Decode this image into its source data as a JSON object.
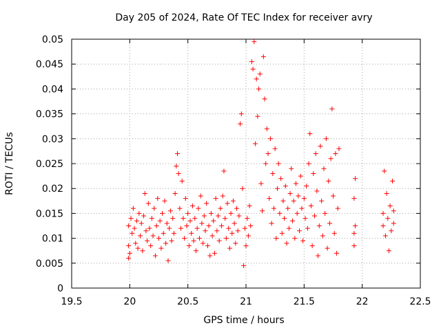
{
  "chart_data": {
    "type": "scatter",
    "title": "Day 205 of 2024, Rate Of TEC Index for receiver avry",
    "xlabel": "GPS time / hours",
    "ylabel": "ROTI / TECUs",
    "xlim": [
      19.5,
      22.5
    ],
    "ylim": [
      0,
      0.05
    ],
    "xticks": [
      19.5,
      20,
      20.5,
      21,
      21.5,
      22,
      22.5
    ],
    "xtick_labels": [
      "19.5",
      "20",
      "20.5",
      "21",
      "21.5",
      "22",
      "22.5"
    ],
    "yticks": [
      0,
      0.005,
      0.01,
      0.015,
      0.02,
      0.025,
      0.03,
      0.035,
      0.04,
      0.045,
      0.05
    ],
    "ytick_labels": [
      "0",
      "0.005",
      "0.01",
      "0.015",
      "0.02",
      "0.025",
      "0.03",
      "0.035",
      "0.04",
      "0.045",
      "0.05"
    ],
    "grid": true,
    "legend": "none",
    "marker": "plus",
    "series_color": "#ff0000",
    "series": [
      {
        "name": "ROTI",
        "points": [
          [
            19.99,
            0.006
          ],
          [
            19.99,
            0.0085
          ],
          [
            19.99,
            0.0125
          ],
          [
            20.0,
            0.007
          ],
          [
            20.01,
            0.014
          ],
          [
            20.02,
            0.011
          ],
          [
            20.03,
            0.016
          ],
          [
            20.04,
            0.012
          ],
          [
            20.05,
            0.009
          ],
          [
            20.06,
            0.0135
          ],
          [
            20.07,
            0.008
          ],
          [
            20.08,
            0.015
          ],
          [
            20.09,
            0.0105
          ],
          [
            20.1,
            0.013
          ],
          [
            20.11,
            0.0075
          ],
          [
            20.12,
            0.0145
          ],
          [
            20.13,
            0.019
          ],
          [
            20.14,
            0.0115
          ],
          [
            20.15,
            0.0095
          ],
          [
            20.16,
            0.017
          ],
          [
            20.17,
            0.012
          ],
          [
            20.18,
            0.0085
          ],
          [
            20.19,
            0.014
          ],
          [
            20.2,
            0.0105
          ],
          [
            20.21,
            0.016
          ],
          [
            20.22,
            0.0065
          ],
          [
            20.23,
            0.0125
          ],
          [
            20.24,
            0.018
          ],
          [
            20.25,
            0.01
          ],
          [
            20.26,
            0.0135
          ],
          [
            20.27,
            0.008
          ],
          [
            20.28,
            0.015
          ],
          [
            20.29,
            0.011
          ],
          [
            20.3,
            0.0175
          ],
          [
            20.31,
            0.009
          ],
          [
            20.32,
            0.013
          ],
          [
            20.33,
            0.0055
          ],
          [
            20.34,
            0.012
          ],
          [
            20.35,
            0.0155
          ],
          [
            20.36,
            0.0095
          ],
          [
            20.37,
            0.014
          ],
          [
            20.38,
            0.011
          ],
          [
            20.39,
            0.019
          ],
          [
            20.4,
            0.0245
          ],
          [
            20.41,
            0.027
          ],
          [
            20.42,
            0.023
          ],
          [
            20.43,
            0.016
          ],
          [
            20.44,
            0.012
          ],
          [
            20.45,
            0.0215
          ],
          [
            20.46,
            0.014
          ],
          [
            20.47,
            0.01
          ],
          [
            20.48,
            0.018
          ],
          [
            20.49,
            0.0125
          ],
          [
            20.5,
            0.015
          ],
          [
            20.51,
            0.0085
          ],
          [
            20.52,
            0.0135
          ],
          [
            20.53,
            0.011
          ],
          [
            20.54,
            0.0165
          ],
          [
            20.55,
            0.0095
          ],
          [
            20.56,
            0.014
          ],
          [
            20.57,
            0.0075
          ],
          [
            20.58,
            0.012
          ],
          [
            20.59,
            0.016
          ],
          [
            20.6,
            0.01
          ],
          [
            20.61,
            0.0185
          ],
          [
            20.62,
            0.013
          ],
          [
            20.63,
            0.009
          ],
          [
            20.64,
            0.0145
          ],
          [
            20.65,
            0.0115
          ],
          [
            20.66,
            0.017
          ],
          [
            20.67,
            0.0085
          ],
          [
            20.68,
            0.0125
          ],
          [
            20.69,
            0.0065
          ],
          [
            20.7,
            0.015
          ],
          [
            20.71,
            0.0105
          ],
          [
            20.72,
            0.0135
          ],
          [
            20.73,
            0.007
          ],
          [
            20.74,
            0.018
          ],
          [
            20.75,
            0.0115
          ],
          [
            20.76,
            0.0145
          ],
          [
            20.77,
            0.0095
          ],
          [
            20.78,
            0.016
          ],
          [
            20.79,
            0.0125
          ],
          [
            20.8,
            0.0185
          ],
          [
            20.81,
            0.0235
          ],
          [
            20.82,
            0.014
          ],
          [
            20.83,
            0.01
          ],
          [
            20.84,
            0.017
          ],
          [
            20.85,
            0.012
          ],
          [
            20.86,
            0.008
          ],
          [
            20.87,
            0.015
          ],
          [
            20.88,
            0.011
          ],
          [
            20.89,
            0.0175
          ],
          [
            20.9,
            0.013
          ],
          [
            20.91,
            0.009
          ],
          [
            20.92,
            0.016
          ],
          [
            20.93,
            0.0115
          ],
          [
            20.94,
            0.0145
          ],
          [
            20.95,
            0.033
          ],
          [
            20.96,
            0.035
          ],
          [
            20.97,
            0.02
          ],
          [
            20.98,
            0.0045
          ],
          [
            20.99,
            0.012
          ],
          [
            21.0,
            0.0085
          ],
          [
            21.01,
            0.014
          ],
          [
            21.02,
            0.0105
          ],
          [
            21.03,
            0.0165
          ],
          [
            21.04,
            0.0125
          ],
          [
            21.05,
            0.0455
          ],
          [
            21.06,
            0.044
          ],
          [
            21.07,
            0.0495
          ],
          [
            21.08,
            0.029
          ],
          [
            21.09,
            0.042
          ],
          [
            21.1,
            0.0345
          ],
          [
            21.11,
            0.04
          ],
          [
            21.12,
            0.043
          ],
          [
            21.13,
            0.021
          ],
          [
            21.14,
            0.0155
          ],
          [
            21.15,
            0.0465
          ],
          [
            21.16,
            0.038
          ],
          [
            21.17,
            0.025
          ],
          [
            21.18,
            0.032
          ],
          [
            21.19,
            0.027
          ],
          [
            21.2,
            0.018
          ],
          [
            21.21,
            0.03
          ],
          [
            21.22,
            0.013
          ],
          [
            21.23,
            0.023
          ],
          [
            21.24,
            0.016
          ],
          [
            21.25,
            0.028
          ],
          [
            21.26,
            0.01
          ],
          [
            21.27,
            0.02
          ],
          [
            21.28,
            0.025
          ],
          [
            21.29,
            0.015
          ],
          [
            21.3,
            0.022
          ],
          [
            21.31,
            0.011
          ],
          [
            21.32,
            0.0175
          ],
          [
            21.33,
            0.014
          ],
          [
            21.34,
            0.0205
          ],
          [
            21.35,
            0.009
          ],
          [
            21.36,
            0.016
          ],
          [
            21.37,
            0.012
          ],
          [
            21.38,
            0.019
          ],
          [
            21.39,
            0.024
          ],
          [
            21.4,
            0.0135
          ],
          [
            21.41,
            0.0175
          ],
          [
            21.42,
            0.01
          ],
          [
            21.43,
            0.021
          ],
          [
            21.44,
            0.015
          ],
          [
            21.45,
            0.0185
          ],
          [
            21.46,
            0.0115
          ],
          [
            21.47,
            0.0225
          ],
          [
            21.48,
            0.016
          ],
          [
            21.49,
            0.0095
          ],
          [
            21.5,
            0.018
          ],
          [
            21.51,
            0.014
          ],
          [
            21.52,
            0.0205
          ],
          [
            21.53,
            0.012
          ],
          [
            21.54,
            0.025
          ],
          [
            21.55,
            0.031
          ],
          [
            21.56,
            0.0165
          ],
          [
            21.57,
            0.0085
          ],
          [
            21.58,
            0.023
          ],
          [
            21.59,
            0.0145
          ],
          [
            21.6,
            0.027
          ],
          [
            21.61,
            0.0195
          ],
          [
            21.62,
            0.0065
          ],
          [
            21.63,
            0.0125
          ],
          [
            21.64,
            0.0285
          ],
          [
            21.65,
            0.0175
          ],
          [
            21.66,
            0.0105
          ],
          [
            21.67,
            0.024
          ],
          [
            21.68,
            0.015
          ],
          [
            21.69,
            0.03
          ],
          [
            21.7,
            0.008
          ],
          [
            21.71,
            0.0215
          ],
          [
            21.72,
            0.013
          ],
          [
            21.73,
            0.026
          ],
          [
            21.74,
            0.036
          ],
          [
            21.75,
            0.0185
          ],
          [
            21.76,
            0.011
          ],
          [
            21.77,
            0.027
          ],
          [
            21.78,
            0.007
          ],
          [
            21.79,
            0.016
          ],
          [
            21.8,
            0.028
          ],
          [
            21.93,
            0.0085
          ],
          [
            21.93,
            0.011
          ],
          [
            21.93,
            0.018
          ],
          [
            21.94,
            0.022
          ],
          [
            21.94,
            0.0125
          ],
          [
            22.18,
            0.0125
          ],
          [
            22.18,
            0.015
          ],
          [
            22.19,
            0.0235
          ],
          [
            22.2,
            0.0105
          ],
          [
            22.21,
            0.019
          ],
          [
            22.22,
            0.014
          ],
          [
            22.23,
            0.0075
          ],
          [
            22.24,
            0.0165
          ],
          [
            22.25,
            0.0115
          ],
          [
            22.26,
            0.0215
          ],
          [
            22.27,
            0.013
          ],
          [
            22.27,
            0.0155
          ]
        ]
      }
    ]
  }
}
